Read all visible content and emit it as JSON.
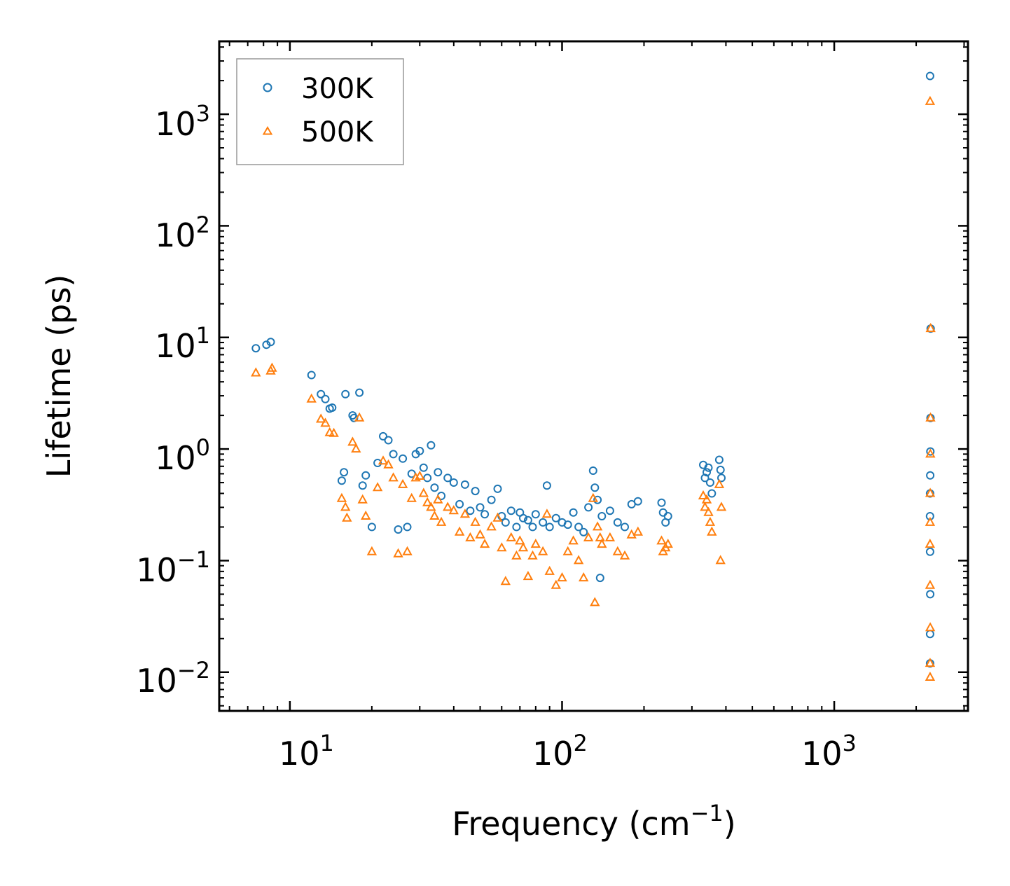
{
  "chart_data": {
    "type": "scatter",
    "title": "",
    "xlabel": "Frequency (cm",
    "xlabel_sup": "−1",
    "xlabel_end": ")",
    "ylabel": "Lifetime (ps)",
    "xscale": "log",
    "yscale": "log",
    "xlim": [
      5.5,
      3100
    ],
    "ylim": [
      0.0045,
      4500
    ],
    "x_ticks": [
      {
        "value": 10,
        "base": "10",
        "exp": "1"
      },
      {
        "value": 100,
        "base": "10",
        "exp": "2"
      },
      {
        "value": 1000,
        "base": "10",
        "exp": "3"
      }
    ],
    "y_ticks": [
      {
        "value": 0.01,
        "base": "10",
        "exp": "−2"
      },
      {
        "value": 0.1,
        "base": "10",
        "exp": "−1"
      },
      {
        "value": 1,
        "base": "10",
        "exp": "0"
      },
      {
        "value": 10,
        "base": "10",
        "exp": "1"
      },
      {
        "value": 100,
        "base": "10",
        "exp": "2"
      },
      {
        "value": 1000,
        "base": "10",
        "exp": "3"
      }
    ],
    "legend_position": "top-left",
    "series": [
      {
        "name": "300K",
        "marker": "circle",
        "color": "#1f77b4",
        "points": [
          [
            7.5,
            8.0
          ],
          [
            8.2,
            8.6
          ],
          [
            8.5,
            9.1
          ],
          [
            12.0,
            4.6
          ],
          [
            13.0,
            3.1
          ],
          [
            13.5,
            2.8
          ],
          [
            14.0,
            2.3
          ],
          [
            14.3,
            2.35
          ],
          [
            15.5,
            0.52
          ],
          [
            15.8,
            0.62
          ],
          [
            16.0,
            3.1
          ],
          [
            17.0,
            2.0
          ],
          [
            17.2,
            1.9
          ],
          [
            18.0,
            3.2
          ],
          [
            18.5,
            0.47
          ],
          [
            19.0,
            0.58
          ],
          [
            20.0,
            0.2
          ],
          [
            21.0,
            0.75
          ],
          [
            22.0,
            1.3
          ],
          [
            23.0,
            1.2
          ],
          [
            24.0,
            0.9
          ],
          [
            25.0,
            0.19
          ],
          [
            26.0,
            0.82
          ],
          [
            27.0,
            0.2
          ],
          [
            28.0,
            0.6
          ],
          [
            29.0,
            0.9
          ],
          [
            30.0,
            0.96
          ],
          [
            31.0,
            0.68
          ],
          [
            32.0,
            0.55
          ],
          [
            33.0,
            1.08
          ],
          [
            34.0,
            0.45
          ],
          [
            35.0,
            0.62
          ],
          [
            36.0,
            0.38
          ],
          [
            38.0,
            0.55
          ],
          [
            40.0,
            0.5
          ],
          [
            42.0,
            0.32
          ],
          [
            44.0,
            0.48
          ],
          [
            46.0,
            0.28
          ],
          [
            48.0,
            0.42
          ],
          [
            50.0,
            0.3
          ],
          [
            52.0,
            0.26
          ],
          [
            55.0,
            0.35
          ],
          [
            58.0,
            0.44
          ],
          [
            60.0,
            0.25
          ],
          [
            62.0,
            0.22
          ],
          [
            65.0,
            0.28
          ],
          [
            68.0,
            0.2
          ],
          [
            70.0,
            0.27
          ],
          [
            72.0,
            0.24
          ],
          [
            75.0,
            0.23
          ],
          [
            78.0,
            0.2
          ],
          [
            80.0,
            0.26
          ],
          [
            85.0,
            0.22
          ],
          [
            88.0,
            0.47
          ],
          [
            90.0,
            0.2
          ],
          [
            95.0,
            0.24
          ],
          [
            100.0,
            0.22
          ],
          [
            105.0,
            0.21
          ],
          [
            110.0,
            0.27
          ],
          [
            115.0,
            0.2
          ],
          [
            120.0,
            0.18
          ],
          [
            125.0,
            0.3
          ],
          [
            130.0,
            0.64
          ],
          [
            132.0,
            0.45
          ],
          [
            135.0,
            0.35
          ],
          [
            138.0,
            0.07
          ],
          [
            140.0,
            0.25
          ],
          [
            150.0,
            0.28
          ],
          [
            160.0,
            0.22
          ],
          [
            170.0,
            0.2
          ],
          [
            180.0,
            0.32
          ],
          [
            190.0,
            0.34
          ],
          [
            232.0,
            0.33
          ],
          [
            235.0,
            0.27
          ],
          [
            240.0,
            0.22
          ],
          [
            245.0,
            0.25
          ],
          [
            330.0,
            0.72
          ],
          [
            335.0,
            0.55
          ],
          [
            340.0,
            0.62
          ],
          [
            345.0,
            0.68
          ],
          [
            350.0,
            0.5
          ],
          [
            355.0,
            0.4
          ],
          [
            378.0,
            0.8
          ],
          [
            382.0,
            0.65
          ],
          [
            385.0,
            0.55
          ],
          [
            2250.0,
            2200.0
          ],
          [
            2260.0,
            12.0
          ],
          [
            2258.0,
            1.9
          ],
          [
            2255.0,
            0.95
          ],
          [
            2252.0,
            0.58
          ],
          [
            2250.0,
            0.4
          ],
          [
            2248.0,
            0.25
          ],
          [
            2250.0,
            0.12
          ],
          [
            2252.0,
            0.05
          ],
          [
            2250.0,
            0.022
          ],
          [
            2250.0,
            0.012
          ]
        ]
      },
      {
        "name": "500K",
        "marker": "triangle",
        "color": "#ff7f0e",
        "points": [
          [
            7.5,
            4.8
          ],
          [
            8.5,
            5.0
          ],
          [
            8.6,
            5.3
          ],
          [
            12.0,
            2.8
          ],
          [
            13.0,
            1.85
          ],
          [
            13.5,
            1.7
          ],
          [
            14.0,
            1.4
          ],
          [
            14.5,
            1.38
          ],
          [
            15.5,
            0.36
          ],
          [
            16.0,
            0.3
          ],
          [
            16.2,
            0.24
          ],
          [
            17.0,
            1.15
          ],
          [
            17.5,
            1.0
          ],
          [
            18.0,
            1.9
          ],
          [
            18.5,
            0.35
          ],
          [
            19.0,
            0.25
          ],
          [
            20.0,
            0.12
          ],
          [
            21.0,
            0.45
          ],
          [
            22.0,
            0.78
          ],
          [
            23.0,
            0.72
          ],
          [
            24.0,
            0.55
          ],
          [
            25.0,
            0.115
          ],
          [
            26.0,
            0.48
          ],
          [
            27.0,
            0.12
          ],
          [
            28.0,
            0.36
          ],
          [
            29.0,
            0.55
          ],
          [
            30.0,
            0.57
          ],
          [
            31.0,
            0.4
          ],
          [
            32.0,
            0.33
          ],
          [
            33.0,
            0.3
          ],
          [
            34.0,
            0.25
          ],
          [
            35.0,
            0.35
          ],
          [
            36.0,
            0.22
          ],
          [
            38.0,
            0.3
          ],
          [
            40.0,
            0.28
          ],
          [
            42.0,
            0.18
          ],
          [
            44.0,
            0.26
          ],
          [
            46.0,
            0.16
          ],
          [
            48.0,
            0.22
          ],
          [
            50.0,
            0.17
          ],
          [
            52.0,
            0.14
          ],
          [
            55.0,
            0.2
          ],
          [
            58.0,
            0.24
          ],
          [
            60.0,
            0.13
          ],
          [
            62.0,
            0.065
          ],
          [
            65.0,
            0.16
          ],
          [
            68.0,
            0.11
          ],
          [
            70.0,
            0.15
          ],
          [
            72.0,
            0.13
          ],
          [
            75.0,
            0.072
          ],
          [
            78.0,
            0.11
          ],
          [
            80.0,
            0.14
          ],
          [
            85.0,
            0.12
          ],
          [
            88.0,
            0.26
          ],
          [
            90.0,
            0.08
          ],
          [
            95.0,
            0.06
          ],
          [
            100.0,
            0.07
          ],
          [
            105.0,
            0.12
          ],
          [
            110.0,
            0.15
          ],
          [
            115.0,
            0.1
          ],
          [
            120.0,
            0.07
          ],
          [
            125.0,
            0.16
          ],
          [
            130.0,
            0.36
          ],
          [
            132.0,
            0.042
          ],
          [
            135.0,
            0.2
          ],
          [
            138.0,
            0.16
          ],
          [
            140.0,
            0.14
          ],
          [
            150.0,
            0.16
          ],
          [
            160.0,
            0.12
          ],
          [
            170.0,
            0.11
          ],
          [
            180.0,
            0.17
          ],
          [
            190.0,
            0.18
          ],
          [
            232.0,
            0.15
          ],
          [
            235.0,
            0.12
          ],
          [
            240.0,
            0.13
          ],
          [
            245.0,
            0.14
          ],
          [
            330.0,
            0.38
          ],
          [
            335.0,
            0.3
          ],
          [
            340.0,
            0.35
          ],
          [
            345.0,
            0.27
          ],
          [
            350.0,
            0.22
          ],
          [
            355.0,
            0.18
          ],
          [
            378.0,
            0.48
          ],
          [
            382.0,
            0.1
          ],
          [
            385.0,
            0.3
          ],
          [
            2250.0,
            1300.0
          ],
          [
            2260.0,
            12.0
          ],
          [
            2258.0,
            1.9
          ],
          [
            2255.0,
            0.9
          ],
          [
            2252.0,
            0.4
          ],
          [
            2250.0,
            0.22
          ],
          [
            2248.0,
            0.14
          ],
          [
            2250.0,
            0.06
          ],
          [
            2252.0,
            0.025
          ],
          [
            2250.0,
            0.012
          ],
          [
            2250.0,
            0.009
          ]
        ]
      }
    ]
  }
}
